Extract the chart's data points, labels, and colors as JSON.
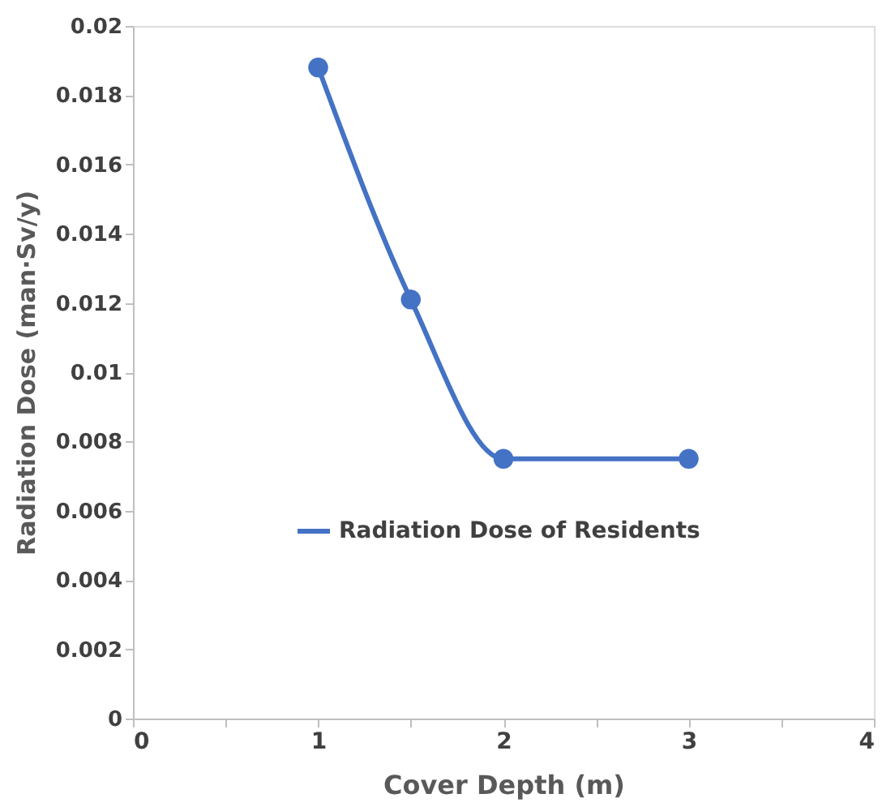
{
  "chart_data": {
    "type": "line",
    "xlabel": "Cover Depth (m)",
    "ylabel": "Radiation Dose (man·Sv/y)",
    "x": [
      1,
      1.5,
      2,
      3
    ],
    "series": [
      {
        "name": "Radiation Dose of Residents",
        "color": "#4472c4",
        "values": [
          0.0188,
          0.0121,
          0.0075,
          0.0075
        ]
      }
    ],
    "xlim": [
      0,
      4
    ],
    "xticks": [
      0,
      {
        "value": 0.5,
        "label": null
      },
      1,
      {
        "value": 1.5,
        "label": null
      },
      2,
      {
        "value": 2.5,
        "label": null
      },
      3,
      {
        "value": 3.5,
        "label": null
      },
      4
    ],
    "ylim": [
      0,
      0.02
    ],
    "yticks": [
      0,
      0.002,
      0.004,
      0.006,
      0.008,
      0.01,
      0.012,
      0.014,
      0.016,
      0.018,
      0.02
    ],
    "grid": false,
    "legend": "center",
    "marker": "circle",
    "line_style": "solid"
  }
}
